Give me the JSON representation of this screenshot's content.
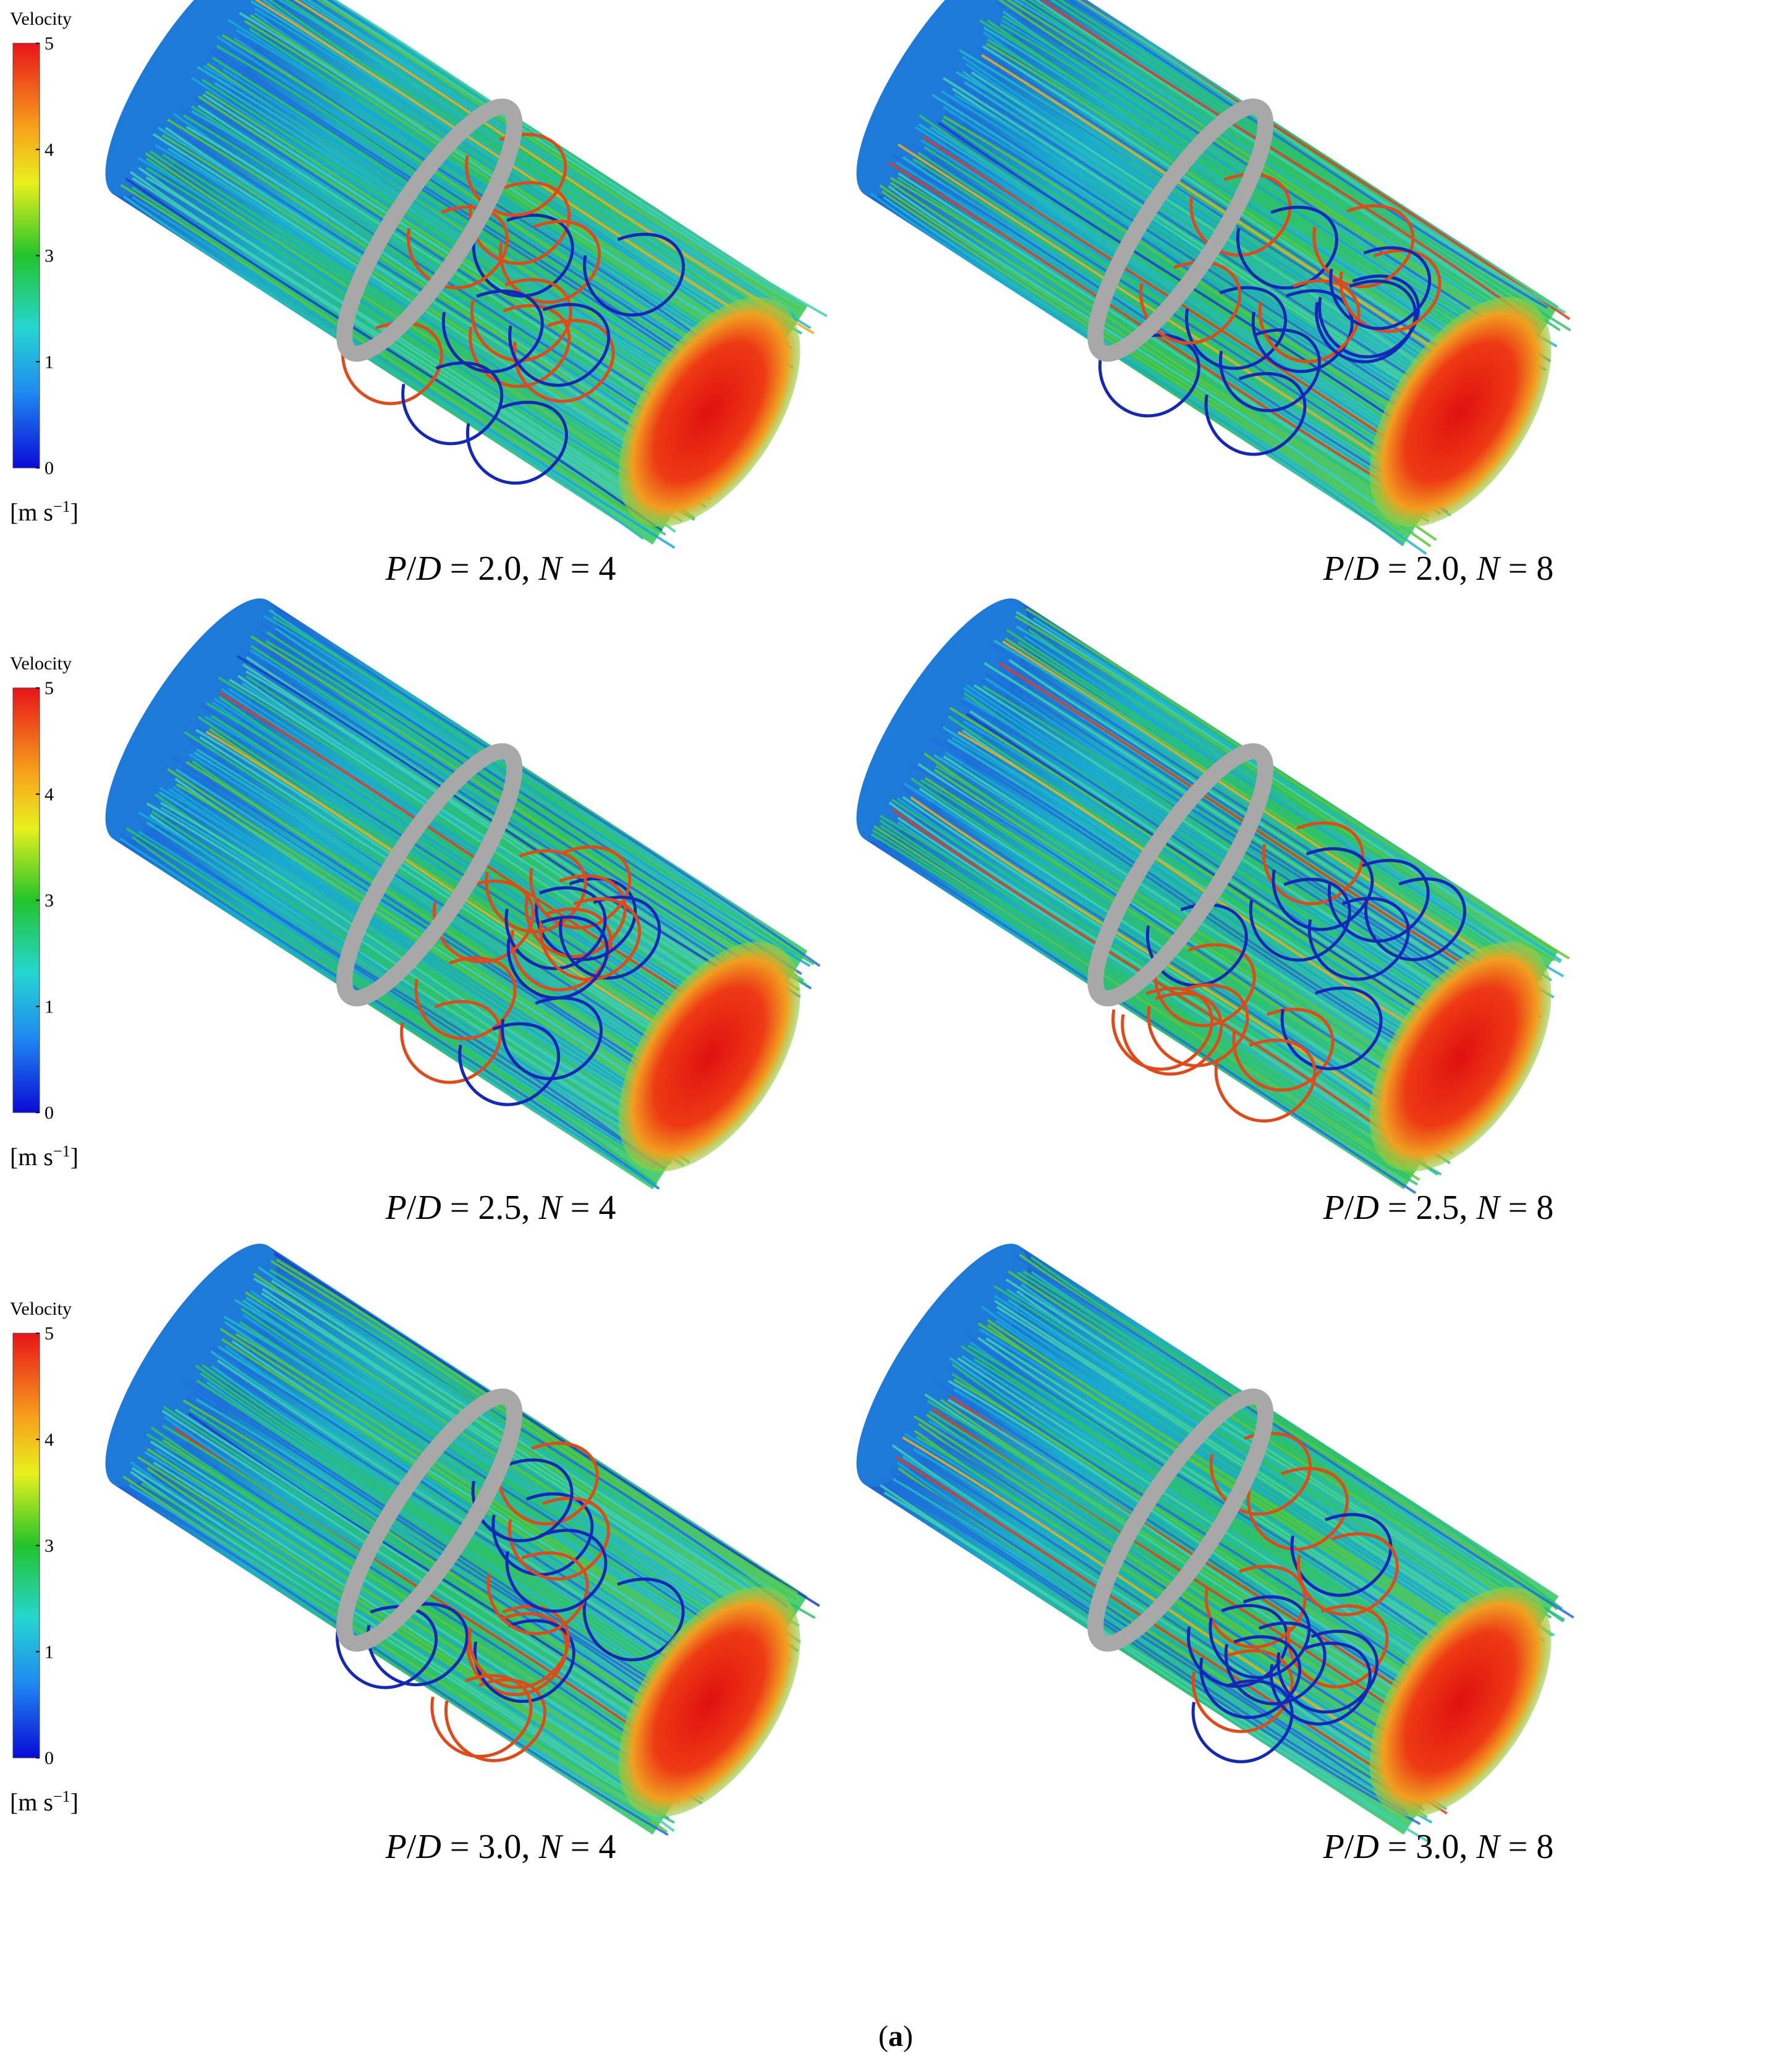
{
  "figure": {
    "rows": [
      {
        "legend": {
          "title": "Velocity",
          "ticks": [
            "5",
            "4",
            "3",
            "1",
            "0"
          ],
          "unit": [
            "[m s",
            "−1",
            "]"
          ]
        },
        "panels": [
          {
            "caption": [
              "P",
              "/",
              "D",
              " = 2.0, ",
              "N",
              " = 4"
            ]
          },
          {
            "caption": [
              "P",
              "/",
              "D",
              " = 2.0, ",
              "N",
              " = 8"
            ]
          }
        ]
      },
      {
        "legend": {
          "title": "Velocity",
          "ticks": [
            "5",
            "4",
            "3",
            "1",
            "0"
          ],
          "unit": [
            "[m s",
            "−1",
            "]"
          ]
        },
        "panels": [
          {
            "caption": [
              "P",
              "/",
              "D",
              " = 2.5, ",
              "N",
              " = 4"
            ]
          },
          {
            "caption": [
              "P",
              "/",
              "D",
              " = 2.5, ",
              "N",
              " = 8"
            ]
          }
        ]
      },
      {
        "legend": {
          "title": "Velocity",
          "ticks": [
            "5",
            "4",
            "3",
            "1",
            "0"
          ],
          "unit": [
            "[m s",
            "−1",
            "]"
          ]
        },
        "panels": [
          {
            "caption": [
              "P",
              "/",
              "D",
              " = 3.0, ",
              "N",
              " = 4"
            ]
          },
          {
            "caption": [
              "P",
              "/",
              "D",
              " = 3.0, ",
              "N",
              " = 8"
            ]
          }
        ]
      }
    ],
    "label": [
      "(",
      "a",
      ")"
    ]
  }
}
